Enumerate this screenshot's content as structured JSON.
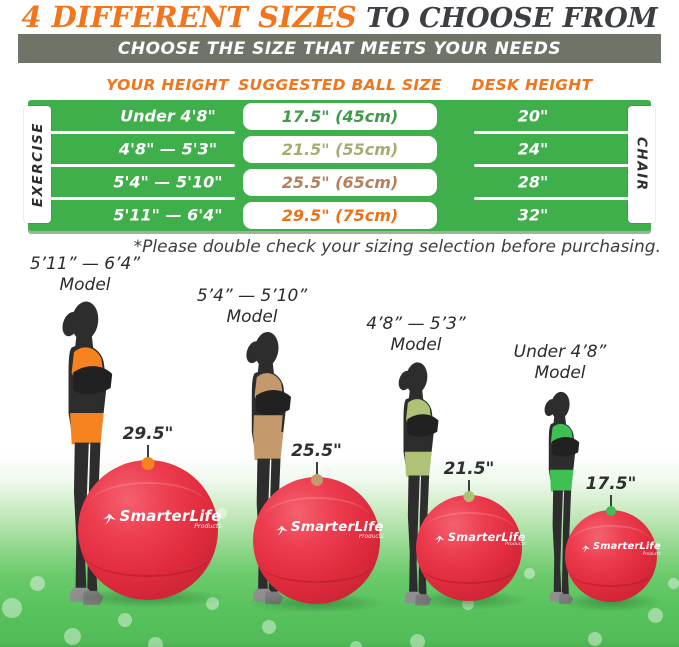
{
  "title": {
    "highlight": "4 DIFFERENT SIZES",
    "rest": " TO CHOOSE FROM"
  },
  "banner": {
    "text": "CHOOSE THE SIZE THAT MEETS YOUR NEEDS",
    "bg": "#6F7468"
  },
  "table": {
    "headers": [
      "YOUR HEIGHT",
      "SUGGESTED BALL SIZE",
      "DESK HEIGHT"
    ],
    "side_left": "EXERCISE",
    "side_right": "CHAIR",
    "green": "#3FAF4B",
    "rows": [
      {
        "height": "Under 4'8\"",
        "ball_size": "17.5\" (45cm)",
        "desk": "20\"",
        "color": "#3E9B47"
      },
      {
        "height": "4'8\" — 5'3\"",
        "ball_size": "21.5\" (55cm)",
        "desk": "24\"",
        "color": "#A9AC72"
      },
      {
        "height": "5'4\" — 5'10\"",
        "ball_size": "25.5\" (65cm)",
        "desk": "28\"",
        "color": "#B5805C"
      },
      {
        "height": "5'11\" — 6'4\"",
        "ball_size": "29.5\" (75cm)",
        "desk": "32\"",
        "color": "#EE7117"
      }
    ]
  },
  "note": "*Please double check your sizing selection before purchasing.",
  "models": [
    {
      "range": "5’11” — 6’4”",
      "label": "Model",
      "ball_label": "29.5\"",
      "outfit": "#F6831F",
      "midriff": "#2d2d2d",
      "knob": "#F6831F"
    },
    {
      "range": "5’4” — 5’10”",
      "label": "Model",
      "ball_label": "25.5\"",
      "outfit": "#C49A6C",
      "midriff": "#C49A6C",
      "knob": "#C49A6C"
    },
    {
      "range": "4’8” — 5’3”",
      "label": "Model",
      "ball_label": "21.5\"",
      "outfit": "#AFC276",
      "midriff": "#2d2d2d",
      "knob": "#AFC276"
    },
    {
      "range": "Under 4’8”",
      "label": "Model",
      "ball_label": "17.5\"",
      "outfit": "#3EC052",
      "midriff": "#2d2d2d",
      "knob": "#3EC052"
    }
  ],
  "ball": {
    "brand": "SmarterLife",
    "brand_sub": "Products",
    "red": "#E02B3D"
  }
}
